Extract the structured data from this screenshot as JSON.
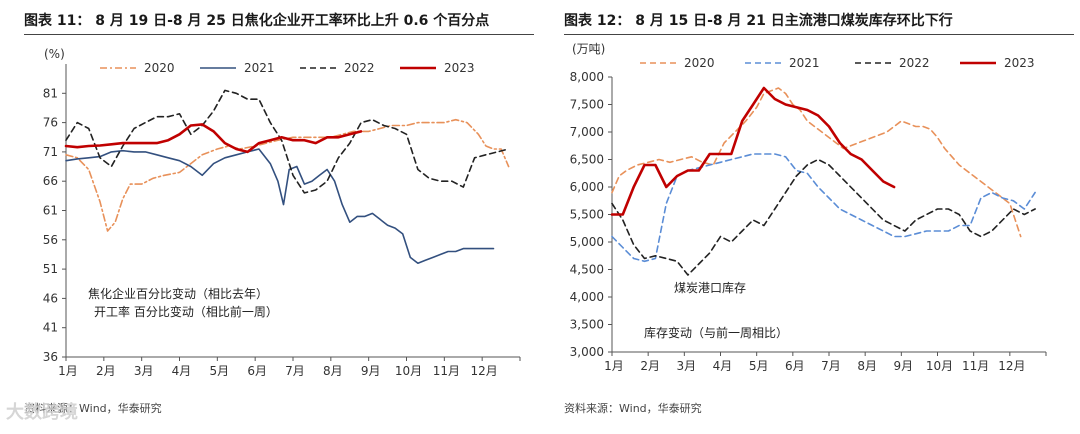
{
  "chart_data": [
    {
      "type": "line",
      "title": "图表 11：  8 月 19 日-8 月 25 日焦化企业开工率环比上升 0.6 个百分点",
      "unit_label": "(%)",
      "categories": [
        "1月",
        "2月",
        "3月",
        "4月",
        "5月",
        "6月",
        "7月",
        "8月",
        "9月",
        "10月",
        "11月",
        "12月"
      ],
      "ylim": [
        36,
        86
      ],
      "yticks": [
        36,
        41,
        46,
        51,
        56,
        61,
        66,
        71,
        76,
        81
      ],
      "legend": [
        "2020",
        "2021",
        "2022",
        "2023"
      ],
      "annotations": [
        "焦化企业百分比变动（相比去年）",
        "开工率 百分比变动（相比前一周）"
      ],
      "series": [
        {
          "name": "2020",
          "color": "#E8915A",
          "dash": "dashdot",
          "x": [
            0,
            0.3,
            0.6,
            0.9,
            1.1,
            1.3,
            1.5,
            1.7,
            2,
            2.3,
            2.6,
            3,
            3.3,
            3.6,
            4,
            4.3,
            4.6,
            5,
            5.3,
            5.6,
            6,
            6.3,
            6.6,
            7,
            7.3,
            7.6,
            8,
            8.3,
            8.6,
            9,
            9.3,
            9.6,
            10,
            10.3,
            10.6,
            10.9,
            11.1,
            11.3,
            11.5,
            11.7
          ],
          "y": [
            70.5,
            70,
            68,
            62.5,
            57.5,
            59,
            63,
            65.5,
            65.5,
            66.5,
            67,
            67.5,
            69,
            70.5,
            71.5,
            72,
            71.5,
            72,
            72.5,
            73,
            73.5,
            73.5,
            73.5,
            73.5,
            74,
            74.5,
            74.5,
            75,
            75.5,
            75.5,
            76,
            76,
            76,
            76.5,
            76,
            74,
            72,
            71.5,
            71.5,
            68.5
          ]
        },
        {
          "name": "2021",
          "color": "#33507F",
          "dash": "solid",
          "x": [
            0,
            0.3,
            0.6,
            0.9,
            1.2,
            1.5,
            1.8,
            2.1,
            2.4,
            2.7,
            3,
            3.3,
            3.6,
            3.9,
            4.2,
            4.5,
            4.8,
            5.1,
            5.4,
            5.6,
            5.75,
            5.9,
            6.1,
            6.3,
            6.5,
            6.7,
            6.9,
            7.1,
            7.3,
            7.5,
            7.7,
            7.9,
            8.1,
            8.3,
            8.5,
            8.7,
            8.9,
            9.1,
            9.3,
            9.5,
            9.7,
            9.9,
            10.1,
            10.3,
            10.5,
            10.7,
            10.9,
            11.1,
            11.3
          ],
          "y": [
            69.5,
            69.8,
            70,
            70.2,
            71,
            71.2,
            71,
            71,
            70.5,
            70,
            69.5,
            68.5,
            67,
            69,
            70,
            70.5,
            71,
            71.5,
            69,
            66,
            62,
            68,
            68.5,
            65.5,
            66,
            67,
            68,
            66,
            62,
            59,
            60,
            60,
            60.5,
            59.5,
            58.5,
            58,
            57,
            53,
            52,
            52.5,
            53,
            53.5,
            54,
            54,
            54.5,
            54.5,
            54.5,
            54.5,
            54.5
          ]
        },
        {
          "name": "2022",
          "color": "#222222",
          "dash": "dashed",
          "x": [
            0,
            0.3,
            0.6,
            0.9,
            1.2,
            1.5,
            1.8,
            2.1,
            2.4,
            2.7,
            3,
            3.3,
            3.6,
            3.9,
            4.2,
            4.5,
            4.8,
            5.1,
            5.4,
            5.7,
            6,
            6.3,
            6.6,
            6.9,
            7.2,
            7.5,
            7.8,
            8.1,
            8.4,
            8.7,
            9,
            9.3,
            9.6,
            9.9,
            10.2,
            10.5,
            10.8,
            11.1,
            11.4,
            11.7
          ],
          "y": [
            73,
            76,
            75,
            70,
            68.5,
            72,
            75,
            76,
            77,
            77,
            77.5,
            74,
            75.5,
            78,
            81.5,
            81,
            80,
            80,
            76,
            73,
            67,
            64,
            64.5,
            66,
            70,
            72.5,
            76,
            76.5,
            75.5,
            75,
            74,
            68,
            66.5,
            66,
            66,
            65,
            70,
            70.5,
            71,
            71.5
          ]
        },
        {
          "name": "2023",
          "color": "#C00000",
          "dash": "solid",
          "width": 2.6,
          "x": [
            0,
            0.3,
            0.6,
            0.9,
            1.2,
            1.5,
            1.8,
            2.1,
            2.4,
            2.7,
            3,
            3.3,
            3.6,
            3.9,
            4.2,
            4.5,
            4.8,
            5.1,
            5.4,
            5.7,
            6,
            6.3,
            6.6,
            6.9,
            7.2,
            7.5,
            7.8
          ],
          "y": [
            72,
            71.8,
            72,
            72.1,
            72.3,
            72.5,
            72.5,
            72.5,
            72.5,
            73,
            74,
            75.5,
            75.7,
            74.5,
            72.5,
            71.5,
            71,
            72.5,
            73,
            73.5,
            73,
            73,
            72.5,
            73.5,
            73.5,
            74,
            74.5
          ]
        }
      ]
    },
    {
      "type": "line",
      "title": "图表 12：  8 月 15 日-8 月 21 日主流港口煤炭库存环比下行",
      "unit_label": "(万吨)",
      "categories": [
        "1月",
        "2月",
        "3月",
        "4月",
        "5月",
        "6月",
        "7月",
        "8月",
        "9月",
        "10月",
        "11月",
        "12月"
      ],
      "ylim": [
        3000,
        8000
      ],
      "yticks": [
        3000,
        3500,
        4000,
        4500,
        5000,
        5500,
        6000,
        6500,
        7000,
        7500,
        8000
      ],
      "legend": [
        "2020",
        "2021",
        "2022",
        "2023"
      ],
      "annotations": [
        "煤炭港口库存",
        "库存变动（与前一周相比）"
      ],
      "series": [
        {
          "name": "2020",
          "color": "#E8915A",
          "dash": "dashed",
          "x": [
            0,
            0.2,
            0.4,
            0.7,
            1,
            1.3,
            1.6,
            1.9,
            2.2,
            2.5,
            2.8,
            3.1,
            3.4,
            3.7,
            4,
            4.2,
            4.4,
            4.6,
            4.8,
            5,
            5.2,
            5.4,
            5.6,
            5.8,
            6,
            6.2,
            6.4,
            6.6,
            6.8,
            7,
            7.2,
            7.4,
            7.6,
            7.8,
            8,
            8.2,
            8.4,
            8.6,
            8.8,
            9,
            9.2,
            9.4,
            9.6,
            9.8,
            10,
            10.2,
            10.4,
            10.6,
            10.8,
            11,
            11.3
          ],
          "y": [
            5900,
            6200,
            6300,
            6400,
            6450,
            6500,
            6450,
            6500,
            6550,
            6450,
            6400,
            6800,
            7000,
            7200,
            7450,
            7700,
            7750,
            7800,
            7700,
            7500,
            7400,
            7200,
            7100,
            7000,
            6900,
            6800,
            6700,
            6750,
            6800,
            6850,
            6900,
            6950,
            7000,
            7100,
            7200,
            7150,
            7100,
            7100,
            7050,
            6900,
            6700,
            6550,
            6400,
            6300,
            6200,
            6100,
            6000,
            5900,
            5800,
            5700,
            5100
          ]
        },
        {
          "name": "2021",
          "color": "#5B8DD6",
          "dash": "dashed",
          "x": [
            0,
            0.3,
            0.6,
            0.9,
            1.2,
            1.5,
            1.8,
            2.1,
            2.4,
            2.7,
            3,
            3.3,
            3.6,
            3.9,
            4.2,
            4.5,
            4.8,
            5.1,
            5.4,
            5.7,
            6,
            6.3,
            6.6,
            6.9,
            7.2,
            7.5,
            7.8,
            8.1,
            8.4,
            8.7,
            9,
            9.3,
            9.6,
            9.9,
            10.2,
            10.5,
            10.8,
            11.1,
            11.4,
            11.7
          ],
          "y": [
            5100,
            4900,
            4700,
            4650,
            4700,
            5700,
            6200,
            6300,
            6350,
            6400,
            6450,
            6500,
            6550,
            6600,
            6600,
            6600,
            6550,
            6300,
            6250,
            6000,
            5800,
            5600,
            5500,
            5400,
            5300,
            5200,
            5100,
            5100,
            5150,
            5200,
            5200,
            5200,
            5300,
            5300,
            5800,
            5900,
            5800,
            5750,
            5600,
            5900
          ]
        },
        {
          "name": "2022",
          "color": "#222222",
          "dash": "dashed",
          "x": [
            0,
            0.3,
            0.6,
            0.9,
            1.2,
            1.5,
            1.8,
            2.1,
            2.4,
            2.7,
            3,
            3.3,
            3.6,
            3.9,
            4.2,
            4.5,
            4.8,
            5.1,
            5.4,
            5.7,
            6,
            6.3,
            6.6,
            6.9,
            7.2,
            7.5,
            7.8,
            8.1,
            8.4,
            8.7,
            9,
            9.3,
            9.6,
            9.9,
            10.2,
            10.5,
            10.8,
            11.1,
            11.4,
            11.7
          ],
          "y": [
            5700,
            5400,
            4950,
            4700,
            4750,
            4700,
            4650,
            4400,
            4600,
            4800,
            5100,
            5000,
            5200,
            5400,
            5300,
            5600,
            5900,
            6200,
            6400,
            6500,
            6400,
            6200,
            6000,
            5800,
            5600,
            5400,
            5300,
            5200,
            5400,
            5500,
            5600,
            5600,
            5500,
            5200,
            5100,
            5200,
            5400,
            5600,
            5500,
            5600
          ]
        },
        {
          "name": "2023",
          "color": "#C00000",
          "dash": "solid",
          "width": 2.6,
          "x": [
            0,
            0.3,
            0.6,
            0.9,
            1.2,
            1.5,
            1.8,
            2.1,
            2.4,
            2.7,
            3,
            3.3,
            3.6,
            3.9,
            4.2,
            4.5,
            4.8,
            5.1,
            5.4,
            5.7,
            6,
            6.3,
            6.6,
            6.9,
            7.2,
            7.5,
            7.8
          ],
          "y": [
            5500,
            5500,
            6000,
            6400,
            6400,
            6000,
            6200,
            6300,
            6300,
            6600,
            6600,
            6600,
            7200,
            7500,
            7800,
            7600,
            7500,
            7450,
            7400,
            7300,
            7100,
            6800,
            6600,
            6500,
            6300,
            6100,
            6000
          ]
        }
      ]
    }
  ],
  "sources": [
    "资料来源：Wind，华泰研究",
    "资料来源：Wind，华泰研究"
  ],
  "watermark": "大数跨境"
}
